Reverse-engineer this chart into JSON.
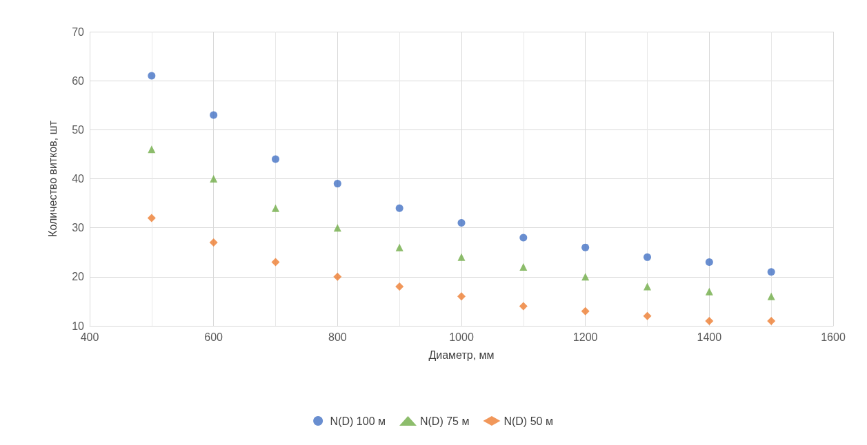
{
  "chart_data": {
    "type": "scatter",
    "xlabel": "Диаметр, мм",
    "ylabel": "Количество витков, шт",
    "x": [
      500,
      600,
      700,
      800,
      900,
      1000,
      1100,
      1200,
      1300,
      1400,
      1500
    ],
    "series": [
      {
        "name": "N(D) 100 м",
        "color": "#4472c4",
        "marker": "circle",
        "values": [
          61,
          53,
          44,
          39,
          34,
          31,
          28,
          26,
          24,
          23,
          21
        ]
      },
      {
        "name": "N(D) 75 м",
        "color": "#70ad47",
        "marker": "triangle",
        "values": [
          46,
          40,
          34,
          30,
          26,
          24,
          22,
          20,
          18,
          17,
          16
        ]
      },
      {
        "name": "N(D) 50 м",
        "color": "#ed7d31",
        "marker": "diamond",
        "values": [
          32,
          27,
          23,
          20,
          18,
          16,
          14,
          13,
          12,
          11,
          11
        ]
      }
    ],
    "xlim": [
      400,
      1600
    ],
    "xticks": [
      400,
      600,
      800,
      1000,
      1200,
      1400,
      1600
    ],
    "ylim": [
      10,
      70
    ],
    "yticks": [
      10,
      20,
      30,
      40,
      50,
      60,
      70
    ],
    "grid": true,
    "legend": "bottom"
  }
}
